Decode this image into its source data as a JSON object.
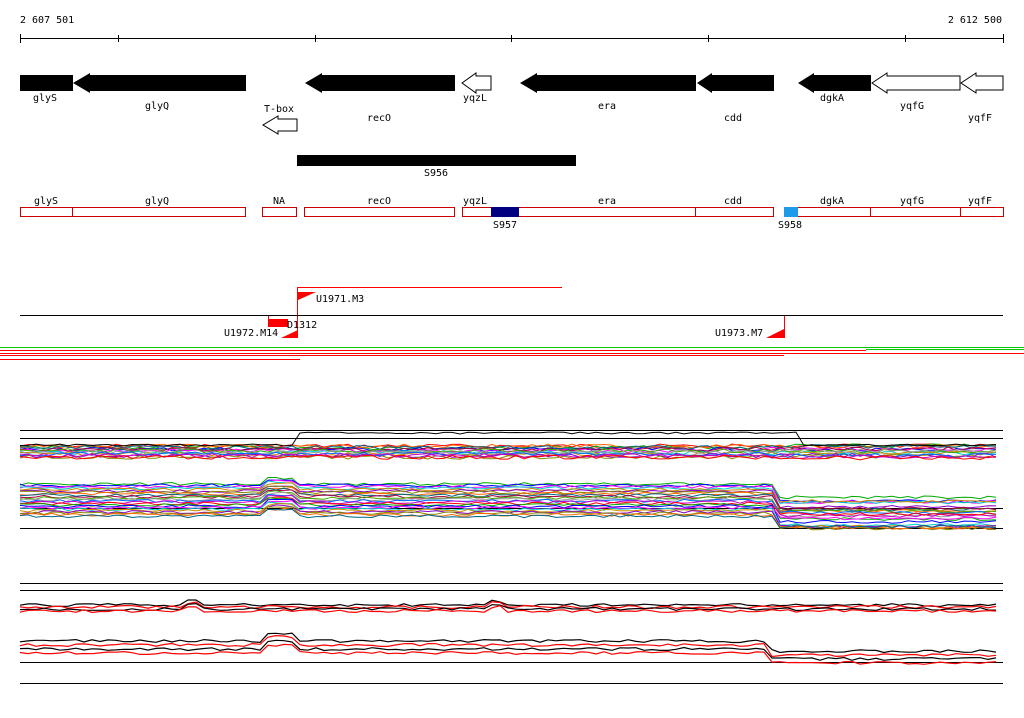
{
  "ruler": {
    "start": "2 607 501",
    "end": "2 612 500"
  },
  "genes": [
    {
      "name": "glyS",
      "strand": "minus",
      "filled": true
    },
    {
      "name": "glyQ",
      "strand": "minus",
      "filled": true
    },
    {
      "name": "T-box",
      "strand": "minus",
      "filled": false
    },
    {
      "name": "recO",
      "strand": "minus",
      "filled": true
    },
    {
      "name": "yqzL",
      "strand": "minus",
      "filled": false
    },
    {
      "name": "era",
      "strand": "minus",
      "filled": true
    },
    {
      "name": "cdd",
      "strand": "minus",
      "filled": true
    },
    {
      "name": "dgkA",
      "strand": "minus",
      "filled": true
    },
    {
      "name": "yqfG",
      "strand": "minus",
      "filled": false
    },
    {
      "name": "yqfF",
      "strand": "minus",
      "filled": false
    }
  ],
  "regulatory_region": {
    "name": "S956"
  },
  "annotation_boxes": [
    "glyS",
    "glyQ",
    "NA",
    "recO",
    "yqzL",
    "era",
    "cdd",
    "dgkA",
    "yqfG",
    "yqfF"
  ],
  "small_rnas": [
    {
      "name": "S957",
      "color": "#000080"
    },
    {
      "name": "S958",
      "color": "#1e9be8"
    }
  ],
  "transcription_units": [
    "U1971.M3",
    "D1312",
    "U1972.M14",
    "U1973.M7"
  ],
  "colors": {
    "utr_red": "#ff0000",
    "track_green": "#00cc00",
    "box_outline": "#cc0000"
  }
}
